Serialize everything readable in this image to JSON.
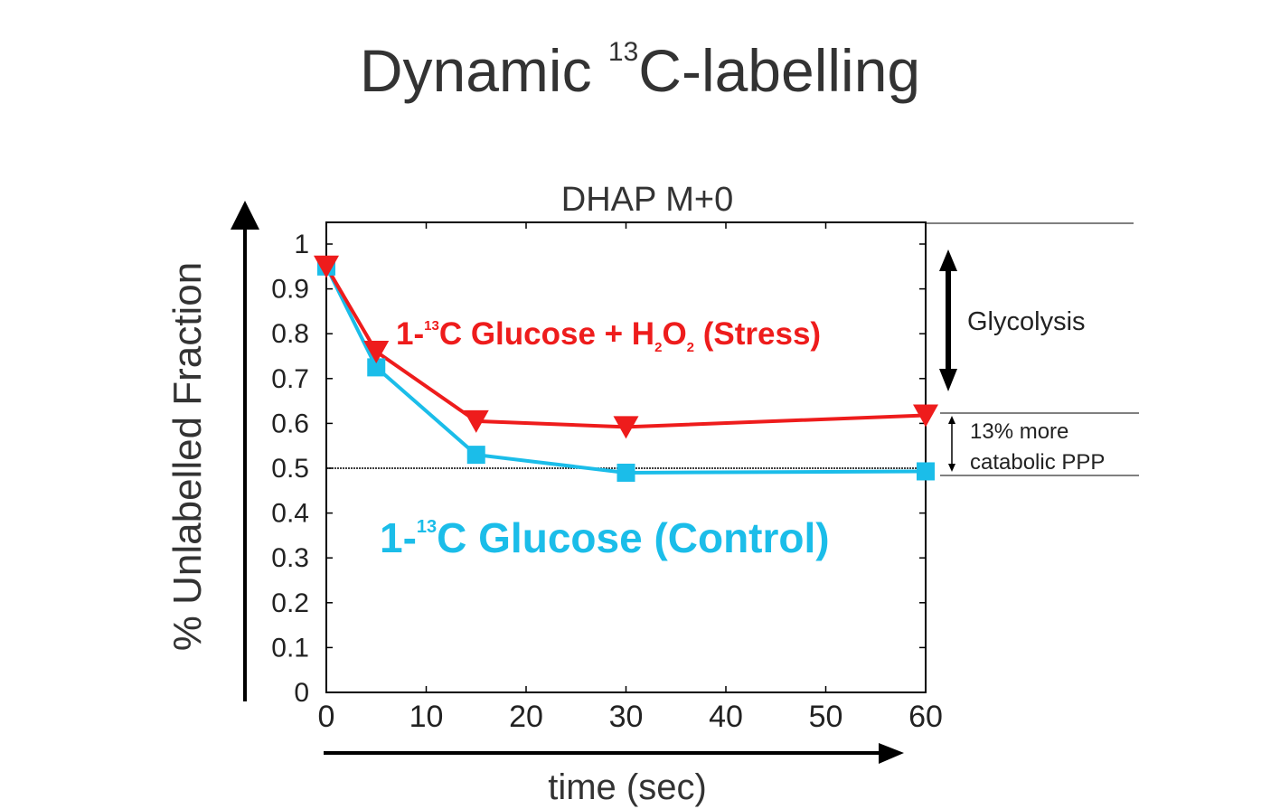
{
  "title": {
    "prefix": "Dynamic ",
    "superscript": "13",
    "suffix": "C-labelling"
  },
  "chart_data": {
    "type": "line",
    "title": "DHAP M+0",
    "xlabel": "time (sec)",
    "ylabel": "% Unlabelled Fraction",
    "xlim": [
      0,
      60
    ],
    "ylim": [
      0,
      1
    ],
    "xticks": [
      "0",
      "10",
      "20",
      "30",
      "40",
      "50",
      "60"
    ],
    "yticks": [
      "0",
      "0.1",
      "0.2",
      "0.3",
      "0.4",
      "0.5",
      "0.6",
      "0.7",
      "0.8",
      "0.9",
      "1"
    ],
    "x": [
      0,
      5,
      15,
      30,
      60
    ],
    "reference_line": 0.5,
    "series": [
      {
        "name": "1-13C Glucose + H2O2 (Stress)",
        "color": "#ee1c1c",
        "marker": "triangle-down",
        "values": [
          0.95,
          0.76,
          0.605,
          0.592,
          0.618
        ]
      },
      {
        "name": "1-13C Glucose (Control)",
        "color": "#1bbde9",
        "marker": "square",
        "values": [
          0.95,
          0.725,
          0.53,
          0.49,
          0.493
        ]
      }
    ],
    "annotations": {
      "stress_label": {
        "p1": "1-",
        "sup": "13",
        "p2": "C Glucose + H",
        "sub1": "2",
        "p3": "O",
        "sub2": "2",
        "p4": " (Stress)"
      },
      "control_label": {
        "p1": "1-",
        "sup": "13",
        "p2": "C Glucose (Control)"
      },
      "glycolysis": "Glycolysis",
      "ppp_line1": "13% more",
      "ppp_line2": "catabolic PPP"
    }
  }
}
